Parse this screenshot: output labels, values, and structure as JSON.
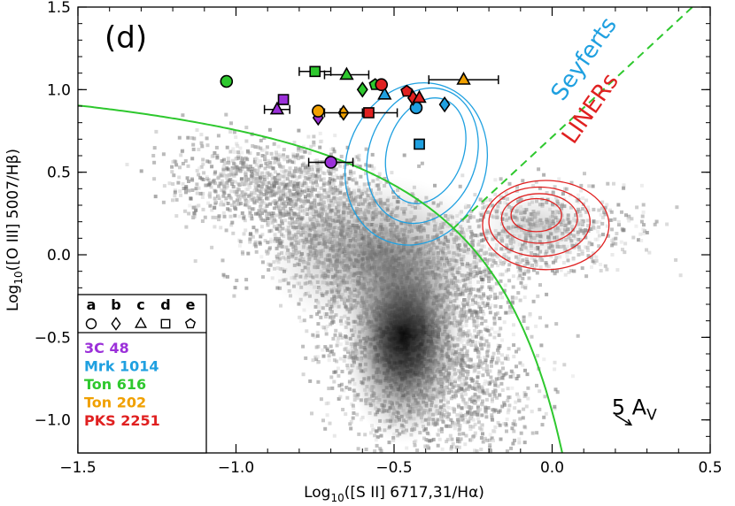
{
  "chart_data": {
    "type": "scatter",
    "panel_label": "(d)",
    "xlabel_parts": {
      "a": "Log",
      "sub": "10",
      "b": "([S II] 6717,31/Hα)"
    },
    "ylabel_parts": {
      "a": "Log",
      "sub": "10",
      "b": "([O III] 5007/Hβ)"
    },
    "xlim": [
      -1.5,
      0.5
    ],
    "ylim": [
      -1.2,
      1.5
    ],
    "xticks": [
      -1.5,
      -1.0,
      -0.5,
      0.0,
      0.5
    ],
    "xtick_labels": [
      "−1.5",
      "−1.0",
      "−0.5",
      "0.0",
      "0.5"
    ],
    "yticks": [
      -1.0,
      -0.5,
      0.0,
      0.5,
      1.0,
      1.5
    ],
    "ytick_labels": [
      "−1.0",
      "−0.5",
      "0.0",
      "0.5",
      "1.0",
      "1.5"
    ],
    "region_labels": [
      {
        "text": "Seyferts",
        "color": "#1fa0e0",
        "x": 0.12,
        "y": 1.16,
        "rot": -55
      },
      {
        "text": "LINERs",
        "color": "#e02020",
        "x": 0.14,
        "y": 0.86,
        "rot": -55
      }
    ],
    "extinction": {
      "label_num": "5",
      "label_txt": "A",
      "label_sub": "V",
      "x": 0.25,
      "y": -1.03,
      "dx": -0.05,
      "dy": 0.06
    },
    "legend": {
      "letters": [
        "a",
        "b",
        "c",
        "d",
        "e"
      ],
      "shapes": [
        "circle",
        "diamond",
        "triangle",
        "square",
        "pentagon"
      ],
      "objects": [
        {
          "name": "3C 48",
          "color": "#9b30d9"
        },
        {
          "name": "Mrk 1014",
          "color": "#1fa0e0"
        },
        {
          "name": "Ton 616",
          "color": "#2ec82e"
        },
        {
          "name": "Ton 202",
          "color": "#f0a000"
        },
        {
          "name": "PKS 2251",
          "color": "#e02020"
        }
      ]
    },
    "series": [
      {
        "object": "3C 48",
        "color": "#9b30d9",
        "points": [
          {
            "shape": "circle",
            "x": -0.7,
            "y": 0.56,
            "xerr": 0.07
          },
          {
            "shape": "diamond",
            "x": -0.74,
            "y": 0.83
          },
          {
            "shape": "triangle",
            "x": -0.87,
            "y": 0.88,
            "xerr": 0.04
          },
          {
            "shape": "square",
            "x": -0.85,
            "y": 0.94
          }
        ]
      },
      {
        "object": "Mrk 1014",
        "color": "#1fa0e0",
        "points": [
          {
            "shape": "circle",
            "x": -0.43,
            "y": 0.89
          },
          {
            "shape": "diamond",
            "x": -0.34,
            "y": 0.91
          },
          {
            "shape": "triangle",
            "x": -0.53,
            "y": 0.97
          },
          {
            "shape": "square",
            "x": -0.42,
            "y": 0.67
          }
        ]
      },
      {
        "object": "Ton 616",
        "color": "#2ec82e",
        "points": [
          {
            "shape": "circle",
            "x": -1.03,
            "y": 1.05
          },
          {
            "shape": "diamond",
            "x": -0.6,
            "y": 1.0
          },
          {
            "shape": "triangle",
            "x": -0.65,
            "y": 1.09,
            "xerr": 0.07
          },
          {
            "shape": "square",
            "x": -0.75,
            "y": 1.11,
            "xerr": 0.05
          },
          {
            "shape": "pentagon",
            "x": -0.56,
            "y": 1.03
          }
        ]
      },
      {
        "object": "Ton 202",
        "color": "#f0a000",
        "points": [
          {
            "shape": "circle",
            "x": -0.74,
            "y": 0.87
          },
          {
            "shape": "diamond",
            "x": -0.66,
            "y": 0.86,
            "xerr": 0.06
          },
          {
            "shape": "triangle",
            "x": -0.28,
            "y": 1.06,
            "xerr": 0.11
          }
        ]
      },
      {
        "object": "PKS 2251",
        "color": "#e02020",
        "points": [
          {
            "shape": "circle",
            "x": -0.54,
            "y": 1.03
          },
          {
            "shape": "diamond",
            "x": -0.44,
            "y": 0.95
          },
          {
            "shape": "triangle",
            "x": -0.42,
            "y": 0.95
          },
          {
            "shape": "square",
            "x": -0.58,
            "y": 0.86,
            "xerr": 0.09
          },
          {
            "shape": "pentagon",
            "x": -0.46,
            "y": 0.99
          }
        ]
      }
    ],
    "lines": {
      "kewley_color": "#2ec82e",
      "seyfert_liner_color": "#2ec82e",
      "seyfert_liner_style": "dashed"
    },
    "contours": {
      "seyfert_color": "#1fa0e0",
      "liner_color": "#e02020"
    },
    "background": "grayscale density of SDSS galaxies"
  }
}
